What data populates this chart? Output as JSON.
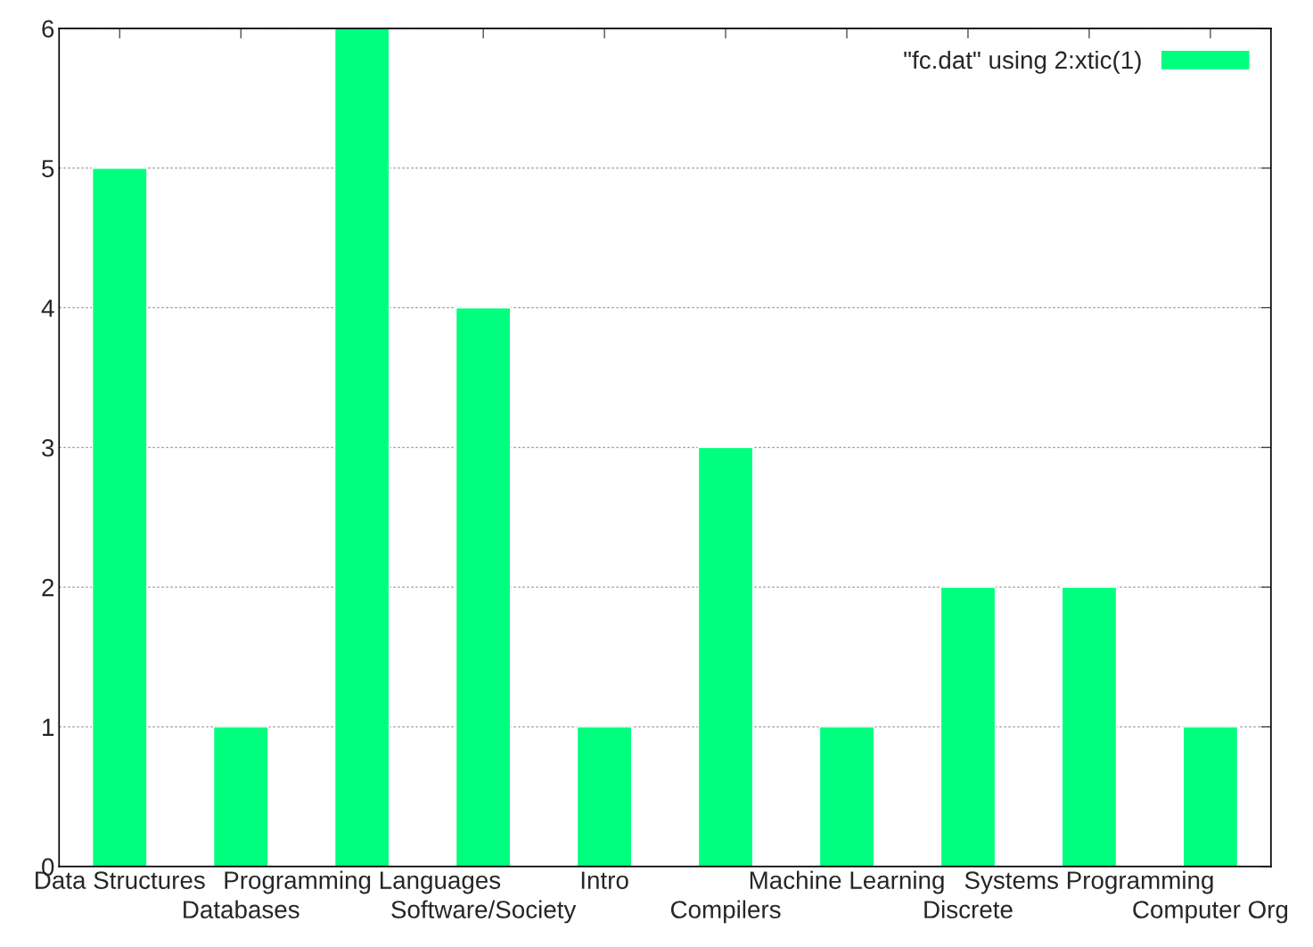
{
  "chart_data": {
    "type": "bar",
    "categories": [
      "Data Structures",
      "Databases",
      "Programming Languages",
      "Software/Society",
      "Intro",
      "Compilers",
      "Machine Learning",
      "Discrete",
      "Systems Programming",
      "Computer Org"
    ],
    "series": [
      {
        "name": "\"fc.dat\" using 2:xtic(1)",
        "color": "#00ff7f",
        "values": [
          5,
          1,
          6,
          4,
          1,
          3,
          1,
          2,
          2,
          1
        ]
      }
    ],
    "ylim": [
      0,
      6
    ],
    "yticks": [
      0,
      1,
      2,
      3,
      4,
      5,
      6
    ],
    "grid": "y",
    "legend": "top right"
  }
}
